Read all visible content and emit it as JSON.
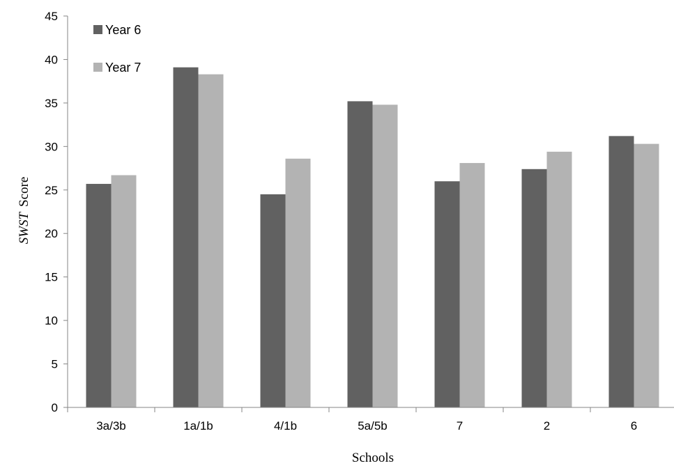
{
  "chart_data": {
    "type": "bar",
    "categories": [
      "3a/3b",
      "1a/1b",
      "4/1b",
      "5a/5b",
      "7",
      "2",
      "6"
    ],
    "series": [
      {
        "name": "Year 6",
        "color": "#616161",
        "values": [
          25.7,
          39.1,
          24.5,
          35.2,
          26.0,
          27.4,
          31.2
        ]
      },
      {
        "name": "Year 7",
        "color": "#b3b3b3",
        "values": [
          26.7,
          38.3,
          28.6,
          34.8,
          28.1,
          29.4,
          30.3
        ]
      }
    ],
    "title": "",
    "xlabel": "Schools",
    "ylabel_italic": "SWST",
    "ylabel_rest": "Score",
    "ylim": [
      0,
      45
    ],
    "yticks": [
      0,
      5,
      10,
      15,
      20,
      25,
      30,
      35,
      40,
      45
    ],
    "grid": false,
    "legend_position": "top-left"
  }
}
